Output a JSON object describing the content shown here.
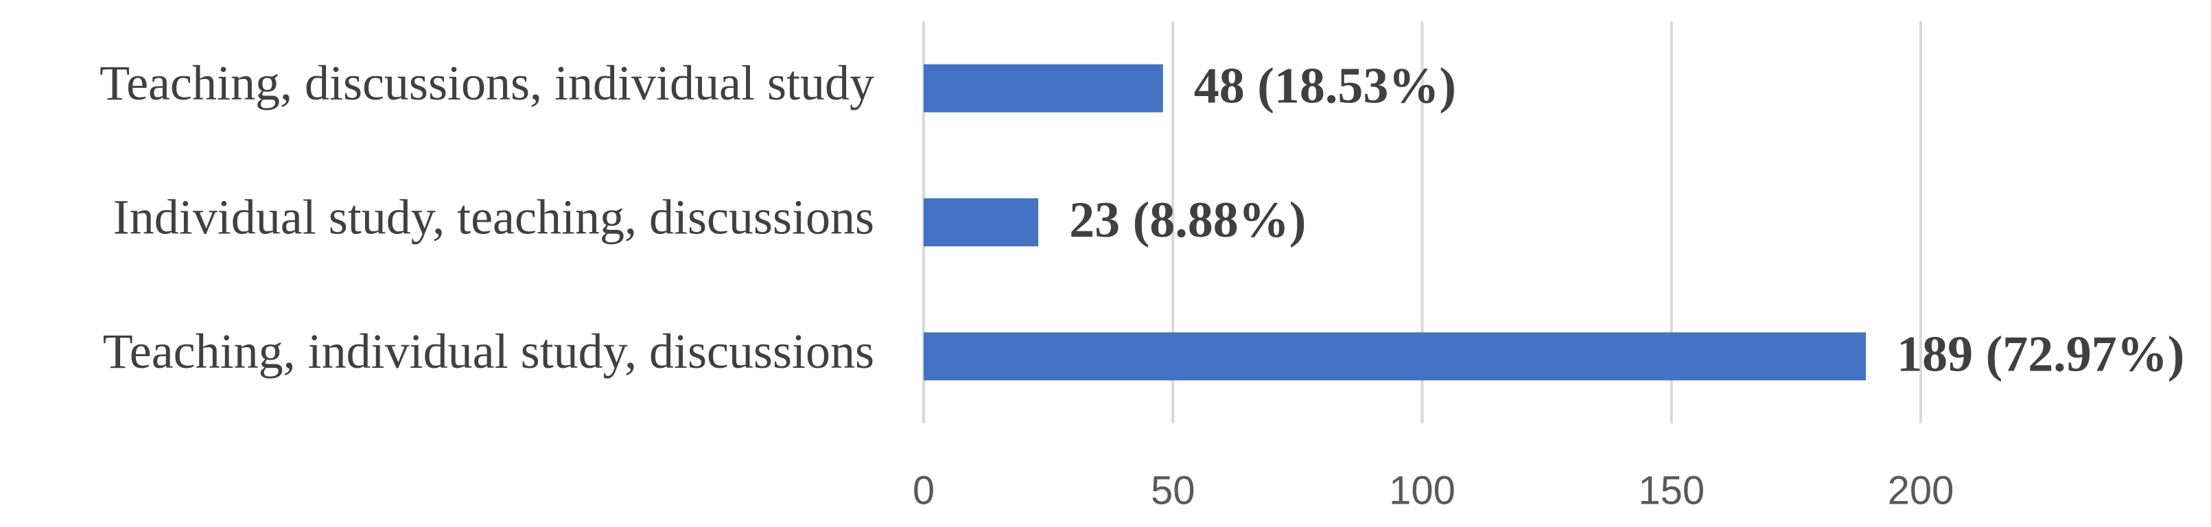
{
  "chart_data": {
    "type": "bar",
    "orientation": "horizontal",
    "categories": [
      "Teaching, discussions, individual study",
      "Individual study, teaching, discussions",
      "Teaching, individual study, discussions"
    ],
    "values": [
      48,
      23,
      189
    ],
    "value_labels": [
      "48 (18.53%)",
      "23 (8.88%)",
      "189 (72.97%)"
    ],
    "color": "#4472c4",
    "xlim": [
      0,
      200
    ],
    "xticks": [
      0,
      50,
      100,
      150,
      200
    ],
    "grid": true
  }
}
